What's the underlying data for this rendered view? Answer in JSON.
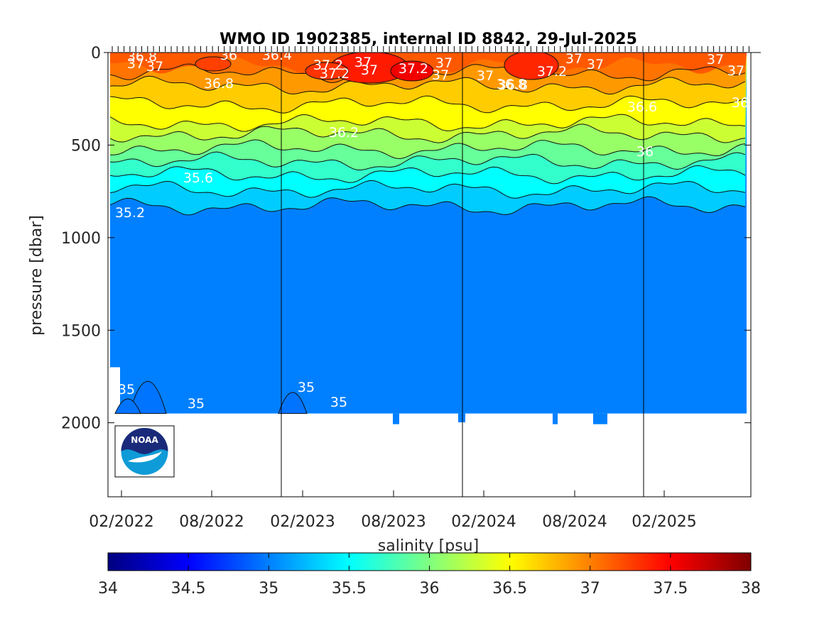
{
  "chart_data": {
    "type": "heatmap",
    "title": "WMO ID 1902385, internal ID 8842, 29-Jul-2025",
    "ylabel": "pressure [dbar]",
    "colorbar_label": "salinity [psu]",
    "x_tick_labels": [
      "02/2022",
      "08/2022",
      "02/2023",
      "08/2023",
      "02/2024",
      "08/2024",
      "02/2025"
    ],
    "y_ticks": [
      0,
      500,
      1000,
      1500,
      2000
    ],
    "ylim": [
      2400,
      0
    ],
    "y_reversed": true,
    "colorbar": {
      "ticks": [
        34,
        34.5,
        35,
        35.5,
        36,
        36.5,
        37,
        37.5,
        38
      ],
      "range": [
        34,
        38
      ],
      "colormap": "jet"
    },
    "contour_levels": [
      35,
      35.2,
      35.4,
      35.6,
      35.8,
      36,
      36.2,
      36.4,
      36.6,
      36.8,
      37,
      37.2
    ],
    "approx_contour_depths_dbar": {
      "37": 110,
      "36.8": 180,
      "36.6": 280,
      "36.4": 380,
      "36.2": 440,
      "36": 520,
      "35.8": 590,
      "35.6": 660,
      "35.4": 740,
      "35.2": 830
    },
    "deep_salinity_psu": 35.0,
    "profile_bottom_dbar": 1950,
    "year_boundary_labels": [
      "01/2023",
      "01/2024",
      "01/2025"
    ],
    "contour_labels": [
      "36.8",
      "37",
      "37",
      "36.8",
      "36",
      "36.4",
      "37.2",
      "37.2",
      "37",
      "37",
      "37.2",
      "37",
      "36.8",
      "37",
      "36.8",
      "37.2",
      "37",
      "37",
      "37",
      "37",
      "37",
      "36.6",
      "36.2",
      "36",
      "35.6",
      "35.2",
      "35",
      "35",
      "35",
      "35",
      "36"
    ],
    "logo": "NOAA"
  },
  "colors": {
    "jet_low": "#00007f",
    "jet_deep": "#0080ff",
    "axis": "#000000",
    "text": "#262626"
  }
}
